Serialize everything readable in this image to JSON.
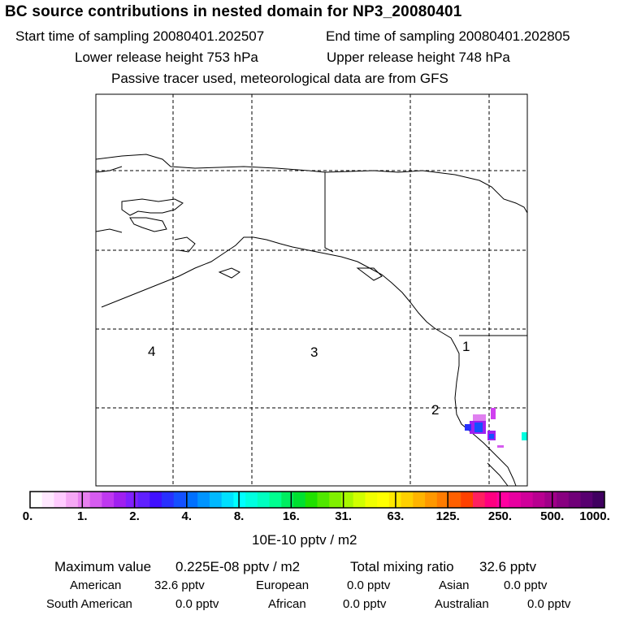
{
  "title": "BC  source contributions in nested domain for NP3_20080401",
  "sampling": {
    "start": "Start time of sampling 20080401.202507",
    "end": "End time of sampling 20080401.202805"
  },
  "release": {
    "lower": "Lower release height  753 hPa",
    "upper": "Upper release height  748 hPa"
  },
  "note": "Passive tracer used, meteorological data are from GFS",
  "chart_data": {
    "type": "heatmap",
    "title": "BC  source contributions in nested domain for NP3_20080401",
    "map_labels": [
      "4",
      "3",
      "1",
      "2"
    ],
    "colorbar": {
      "tick_labels": [
        "0.",
        "1.",
        "2.",
        "4.",
        "8.",
        "16.",
        "31.",
        "63.",
        "125.",
        "250.",
        "500.",
        "1000."
      ],
      "units": "10E-10 pptv / m2",
      "colors": [
        "#ffffff",
        "#ffe8ff",
        "#ffccff",
        "#f5a8f5",
        "#e880f0",
        "#d65cf0",
        "#bf38f0",
        "#a020f0",
        "#8020ff",
        "#6020ff",
        "#4010ff",
        "#2830ff",
        "#1450ff",
        "#0070ff",
        "#0094ff",
        "#00b8ff",
        "#00e0ff",
        "#00ffff",
        "#00ffe0",
        "#00ffc0",
        "#00ff90",
        "#00ee60",
        "#00e030",
        "#20e000",
        "#50e800",
        "#80f000",
        "#a8f800",
        "#d0ff00",
        "#f0ff00",
        "#ffff00",
        "#ffe800",
        "#ffd000",
        "#ffb400",
        "#ff9800",
        "#ff7c00",
        "#ff6000",
        "#ff4000",
        "#ff2060",
        "#ff0080",
        "#ff00a0",
        "#e800a0",
        "#d0009a",
        "#b80090",
        "#a00088",
        "#880080",
        "#700078",
        "#580070",
        "#400060"
      ]
    }
  },
  "stats": {
    "max_label": "Maximum value",
    "max_value": "0.225E-08 pptv / m2",
    "total_label": "Total mixing ratio",
    "total_value": "32.6 pptv",
    "american_label": "American",
    "american_value": "32.6 pptv",
    "european_label": "European",
    "european_value": "0.0 pptv",
    "asian_label": "Asian",
    "asian_value": "0.0 pptv",
    "south_american_label": "South American",
    "south_american_value": "0.0 pptv",
    "african_label": "African",
    "african_value": "0.0 pptv",
    "australian_label": "Australian",
    "australian_value": "0.0 pptv"
  }
}
